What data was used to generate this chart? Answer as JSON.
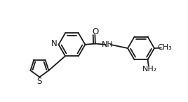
{
  "bg_color": "#ffffff",
  "line_color": "#1a1a1a",
  "line_width": 1.3,
  "font_size": 8.5,
  "xlim": [
    0,
    10
  ],
  "ylim": [
    0,
    5.5
  ]
}
